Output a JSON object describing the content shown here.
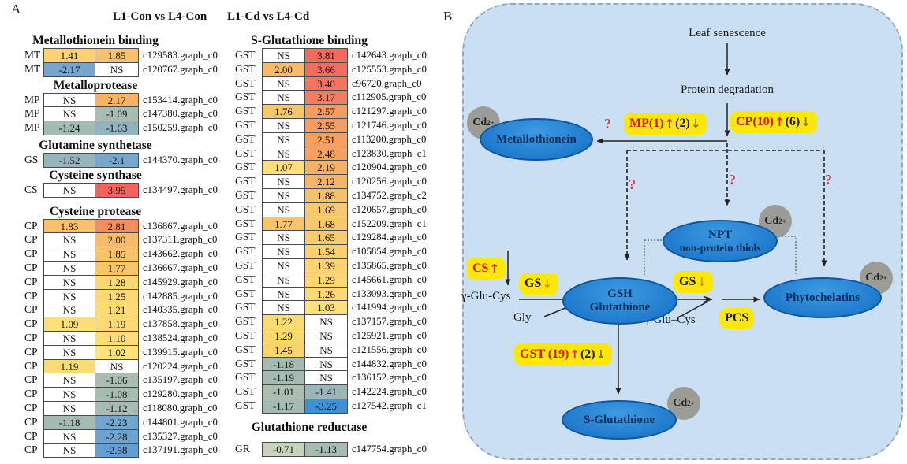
{
  "panel_a": {
    "label": "A",
    "column_headers": [
      "L1-Con vs L4-Con",
      "L1-Cd vs L4-Cd"
    ],
    "left_sections": [
      {
        "title": "Metallothionein binding",
        "rows": [
          {
            "label": "MT",
            "v1": "1.41",
            "v2": "1.85",
            "id": "c129583.graph_c0"
          },
          {
            "label": "MT",
            "v1": "-2.17",
            "v2": "NS",
            "id": "c120767.graph_c0"
          }
        ]
      },
      {
        "title": "Metalloprotease",
        "rows": [
          {
            "label": "MP",
            "v1": "NS",
            "v2": "2.17",
            "id": "c153414.graph_c0"
          },
          {
            "label": "MP",
            "v1": "NS",
            "v2": "-1.09",
            "id": "c147380.graph_c0"
          },
          {
            "label": "MP",
            "v1": "-1.24",
            "v2": "-1.63",
            "id": "c150259.graph_c0"
          }
        ]
      },
      {
        "title": "Glutamine synthetase",
        "rows": [
          {
            "label": "GS",
            "v1": "-1.52",
            "v2": "-2.1",
            "id": "c144370.graph_c0"
          }
        ]
      },
      {
        "title": "Cysteine synthase",
        "rows": [
          {
            "label": "CS",
            "v1": "NS",
            "v2": "3.95",
            "id": "c134497.graph_c0"
          }
        ]
      },
      {
        "title": "Cysteine protease",
        "rows": [
          {
            "label": "CP",
            "v1": "1.83",
            "v2": "2.81",
            "id": "c136867.graph_c0"
          },
          {
            "label": "CP",
            "v1": "NS",
            "v2": "2.00",
            "id": "c137311.graph_c0"
          },
          {
            "label": "CP",
            "v1": "NS",
            "v2": "1.85",
            "id": "c143662.graph_c0"
          },
          {
            "label": "CP",
            "v1": "NS",
            "v2": "1.77",
            "id": "c136667.graph_c0"
          },
          {
            "label": "CP",
            "v1": "NS",
            "v2": "1.28",
            "id": "c145929.graph_c0"
          },
          {
            "label": "CP",
            "v1": "NS",
            "v2": "1.25",
            "id": "c142885.graph_c0"
          },
          {
            "label": "CP",
            "v1": "NS",
            "v2": "1.21",
            "id": "c140335.graph_c0"
          },
          {
            "label": "CP",
            "v1": "1.09",
            "v2": "1.19",
            "id": "c137858.graph_c0"
          },
          {
            "label": "CP",
            "v1": "NS",
            "v2": "1.10",
            "id": "c138524.graph_c0"
          },
          {
            "label": "CP",
            "v1": "NS",
            "v2": "1.02",
            "id": "c139915.graph_c0"
          },
          {
            "label": "CP",
            "v1": "1.19",
            "v2": "NS",
            "id": "c120224.graph_c0"
          },
          {
            "label": "CP",
            "v1": "NS",
            "v2": "-1.06",
            "id": "c135197.graph_c0"
          },
          {
            "label": "CP",
            "v1": "NS",
            "v2": "-1.08",
            "id": "c129280.graph_c0"
          },
          {
            "label": "CP",
            "v1": "NS",
            "v2": "-1.12",
            "id": "c118080.graph_c0"
          },
          {
            "label": "CP",
            "v1": "-1.18",
            "v2": "-2.23",
            "id": "c144801.graph_c0"
          },
          {
            "label": "CP",
            "v1": "NS",
            "v2": "-2.28",
            "id": "c135327.graph_c0"
          },
          {
            "label": "CP",
            "v1": "NS",
            "v2": "-2.58",
            "id": "c137191.graph_c0"
          }
        ]
      }
    ],
    "right_sections": [
      {
        "title": "S-Glutathione binding",
        "rows": [
          {
            "label": "GST",
            "v1": "NS",
            "v2": "3.81",
            "id": "c142643.graph_c0"
          },
          {
            "label": "GST",
            "v1": "2.00",
            "v2": "3.66",
            "id": "c125553.graph_c0"
          },
          {
            "label": "GST",
            "v1": "NS",
            "v2": "3.40",
            "id": "c96720.graph_c0"
          },
          {
            "label": "GST",
            "v1": "NS",
            "v2": "3.17",
            "id": "c112905.graph_c0"
          },
          {
            "label": "GST",
            "v1": "1.76",
            "v2": "2.57",
            "id": "c121297.graph_c0"
          },
          {
            "label": "GST",
            "v1": "NS",
            "v2": "2.55",
            "id": "c121746.graph_c0"
          },
          {
            "label": "GST",
            "v1": "NS",
            "v2": "2.51",
            "id": "c113200.graph_c0"
          },
          {
            "label": "GST",
            "v1": "NS",
            "v2": "2.48",
            "id": "c123830.graph_c1"
          },
          {
            "label": "GST",
            "v1": "1.07",
            "v2": "2.19",
            "id": "c120904.graph_c0"
          },
          {
            "label": "GST",
            "v1": "NS",
            "v2": "2.12",
            "id": "c120256.graph_c0"
          },
          {
            "label": "GST",
            "v1": "NS",
            "v2": "1.88",
            "id": "c134752.graph_c2"
          },
          {
            "label": "GST",
            "v1": "NS",
            "v2": "1.69",
            "id": "c120657.graph_c0"
          },
          {
            "label": "GST",
            "v1": "1.77",
            "v2": "1.68",
            "id": "c152209.graph_c1"
          },
          {
            "label": "GST",
            "v1": "NS",
            "v2": "1.65",
            "id": "c129284.graph_c0"
          },
          {
            "label": "GST",
            "v1": "NS",
            "v2": "1.54",
            "id": "c105854.graph_c0"
          },
          {
            "label": "GST",
            "v1": "NS",
            "v2": "1.39",
            "id": "c135865.graph_c0"
          },
          {
            "label": "GST",
            "v1": "NS",
            "v2": "1.29",
            "id": "c145661.graph_c0"
          },
          {
            "label": "GST",
            "v1": "NS",
            "v2": "1.26",
            "id": "c133093.graph_c0"
          },
          {
            "label": "GST",
            "v1": "NS",
            "v2": "1.03",
            "id": "c141994.graph_c0"
          },
          {
            "label": "GST",
            "v1": "1.22",
            "v2": "NS",
            "id": "c137157.graph_c0"
          },
          {
            "label": "GST",
            "v1": "1.29",
            "v2": "NS",
            "id": "c125921.graph_c0"
          },
          {
            "label": "GST",
            "v1": "1.45",
            "v2": "NS",
            "id": "c121556.graph_c0"
          },
          {
            "label": "GST",
            "v1": "-1.18",
            "v2": "NS",
            "id": "c144832.graph_c0"
          },
          {
            "label": "GST",
            "v1": "-1.19",
            "v2": "NS",
            "id": "c136152.graph_c0"
          },
          {
            "label": "GST",
            "v1": "-1.01",
            "v2": "-1.41",
            "id": "c142224.graph_c0"
          },
          {
            "label": "GST",
            "v1": "-1.17",
            "v2": "-3.25",
            "id": "c127542.graph_c1"
          }
        ]
      },
      {
        "title": "Glutathione reductase",
        "rows": [
          {
            "label": "GR",
            "v1": "-0.71",
            "v2": "-1.13",
            "id": "c147754.graph_c0"
          }
        ]
      }
    ],
    "colorscale": [
      [
        -3.25,
        "#3F91D6"
      ],
      [
        -2.5,
        "#68A0D2"
      ],
      [
        -2.1,
        "#77A7CD"
      ],
      [
        -1.6,
        "#93B3BE"
      ],
      [
        -1.35,
        "#9DB7B6"
      ],
      [
        -1.0,
        "#ABBFB0"
      ],
      [
        -0.71,
        "#C9D3BB"
      ],
      [
        0,
        "#FFFFFF"
      ],
      [
        1.0,
        "#FDE27B"
      ],
      [
        1.5,
        "#FBD06F"
      ],
      [
        2.0,
        "#F8BB68"
      ],
      [
        2.6,
        "#F59A60"
      ],
      [
        3.0,
        "#F4835F"
      ],
      [
        3.5,
        "#F4715F"
      ],
      [
        3.95,
        "#F4645E"
      ]
    ],
    "ns_color": "#FFFFFF"
  },
  "panel_b": {
    "label": "B",
    "background_color": "#CBDFF3",
    "node_color": "#1E79CB",
    "highlight_color": "#FFE70A",
    "top_flow": {
      "step1": "Leaf senescence",
      "step2": "Protein degradation"
    },
    "cd": {
      "base": "Cd",
      "sup": "2+"
    },
    "question_mark": "?",
    "ellipses": {
      "metallothionein": {
        "line1": "Metallothionein"
      },
      "npt": {
        "line1": "NPT",
        "line2": "non-protein thiols"
      },
      "gsh": {
        "line1": "GSH",
        "line2": "Glutathione"
      },
      "phytochelatins": {
        "line1": "Phytochelatins"
      },
      "s_glutathione": {
        "line1": "S-Glutathione"
      }
    },
    "enzyme_labels": {
      "mp": {
        "red": "MP(1)",
        "up": "↑",
        "black": "(2)",
        "down": "↓"
      },
      "cp": {
        "red": "CP(10)",
        "up": "↑",
        "black": "(6)",
        "down": "↓"
      },
      "cs": {
        "red": "CS",
        "up": "↑"
      },
      "gs1": {
        "black": "GS",
        "down": "↓"
      },
      "gs2": {
        "black": "GS",
        "down": "↓"
      },
      "pcs": {
        "black": "PCS"
      },
      "gst": {
        "red": "GST (19)",
        "up": "↑",
        "black": "(2)",
        "down": "↓"
      }
    },
    "small_texts": {
      "gamma_glu_cys_left": "γ-Glu-Cys",
      "gly": "Gly",
      "gamma_glu_cys_right": "γ Glu–Cys"
    }
  }
}
